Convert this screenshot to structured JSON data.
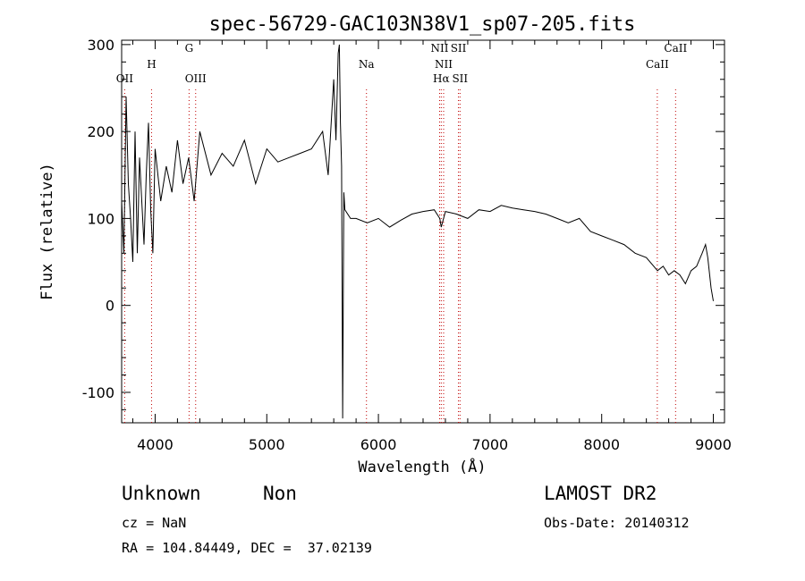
{
  "chart_data": {
    "type": "line",
    "title": "spec-56729-GAC103N38V1_sp07-205.fits",
    "xlabel": "Wavelength (Å)",
    "ylabel": "Flux (relative)",
    "xlim": [
      3700,
      9100
    ],
    "ylim": [
      -135,
      305
    ],
    "xticks": [
      4000,
      5000,
      6000,
      7000,
      8000,
      9000
    ],
    "yticks": [
      -100,
      0,
      100,
      200,
      300
    ],
    "grid": false,
    "line_color": "#000000",
    "series": [
      {
        "x": [
          3700,
          3720,
          3740,
          3760,
          3780,
          3800,
          3820,
          3840,
          3860,
          3880,
          3900,
          3920,
          3940,
          3960,
          3980,
          4000,
          4050,
          4100,
          4150,
          4200,
          4250,
          4300,
          4350,
          4400,
          4500,
          4600,
          4700,
          4800,
          4900,
          5000,
          5100,
          5200,
          5300,
          5400,
          5500,
          5550,
          5600,
          5620,
          5640,
          5650,
          5660,
          5670,
          5680,
          5690,
          5700,
          5750,
          5800,
          5900,
          6000,
          6100,
          6200,
          6300,
          6400,
          6500,
          6550,
          6563,
          6600,
          6700,
          6800,
          6900,
          7000,
          7100,
          7200,
          7300,
          7400,
          7500,
          7600,
          7700,
          7800,
          7900,
          8000,
          8100,
          8200,
          8300,
          8400,
          8500,
          8550,
          8600,
          8650,
          8700,
          8750,
          8800,
          8850,
          8900,
          8930,
          8950,
          8980,
          9000
        ],
        "y": [
          120,
          60,
          240,
          140,
          100,
          50,
          200,
          60,
          170,
          120,
          70,
          150,
          210,
          110,
          60,
          180,
          120,
          160,
          130,
          190,
          140,
          170,
          120,
          200,
          150,
          175,
          160,
          190,
          140,
          180,
          165,
          170,
          175,
          180,
          200,
          150,
          260,
          190,
          290,
          300,
          210,
          160,
          -130,
          130,
          110,
          100,
          100,
          95,
          100,
          90,
          98,
          105,
          108,
          110,
          100,
          90,
          108,
          105,
          100,
          110,
          108,
          115,
          112,
          110,
          108,
          105,
          100,
          95,
          100,
          85,
          80,
          75,
          70,
          60,
          55,
          40,
          45,
          35,
          40,
          35,
          25,
          40,
          45,
          60,
          70,
          55,
          20,
          5
        ]
      }
    ],
    "emission_lines": [
      {
        "label": "OII",
        "x": 3727
      },
      {
        "label": "H",
        "x": 3968
      },
      {
        "label": "G",
        "x": 4304
      },
      {
        "label": "OIII",
        "x": 4363
      },
      {
        "label": "Na",
        "x": 5893
      },
      {
        "label": "NII",
        "x": 6548
      },
      {
        "label": "Hα",
        "x": 6563
      },
      {
        "label": "NII",
        "x": 6584
      },
      {
        "label": "SII",
        "x": 6717
      },
      {
        "label": "SII",
        "x": 6731
      },
      {
        "label": "CaII",
        "x": 8498
      },
      {
        "label": "CaII",
        "x": 8662
      }
    ]
  },
  "info": {
    "class": "Unknown",
    "subclass": "Non",
    "cz": "cz = NaN",
    "radec": "RA = 104.84449, DEC =  37.02139",
    "survey": "LAMOST DR2",
    "obs_date": "Obs-Date: 20140312"
  }
}
